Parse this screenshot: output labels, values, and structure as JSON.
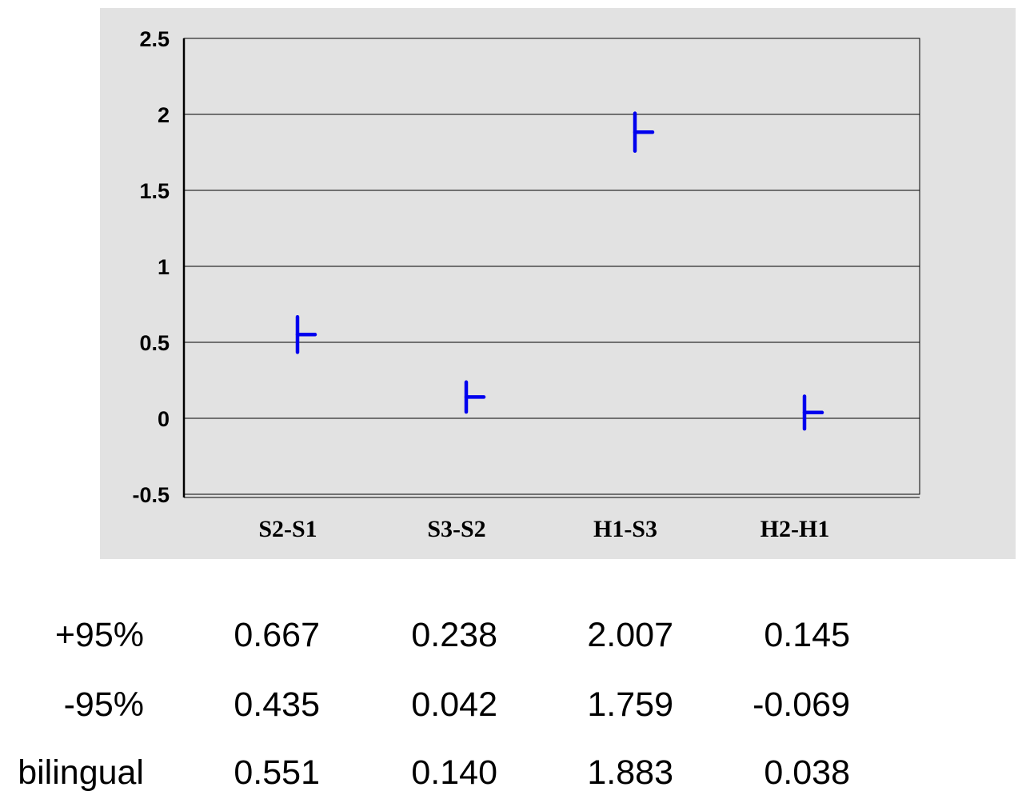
{
  "chart_data": {
    "type": "interval",
    "categories": [
      "S2-S1",
      "S3-S2",
      "H1-S3",
      "H2-H1"
    ],
    "series": [
      {
        "name": "+95%",
        "values": [
          0.667,
          0.238,
          2.007,
          0.145
        ]
      },
      {
        "name": "-95%",
        "values": [
          0.435,
          0.042,
          1.759,
          -0.069
        ]
      },
      {
        "name": "bilingual",
        "values": [
          0.551,
          0.14,
          1.883,
          0.038
        ]
      }
    ],
    "ylim": [
      -0.5,
      2.5
    ],
    "yticks": [
      "2.5",
      "2",
      "1.5",
      "1",
      "0.5",
      "0",
      "-0.5"
    ],
    "grid": true,
    "mark_color": "#0000ee"
  },
  "table": {
    "rows": [
      {
        "label": "+95%",
        "values": [
          "0.667",
          "0.238",
          "2.007",
          "0.145"
        ]
      },
      {
        "label": "-95%",
        "values": [
          "0.435",
          "0.042",
          "1.759",
          "-0.069"
        ]
      },
      {
        "label": "bilingual",
        "values": [
          "0.551",
          "0.140",
          "1.883",
          "0.038"
        ]
      }
    ]
  }
}
